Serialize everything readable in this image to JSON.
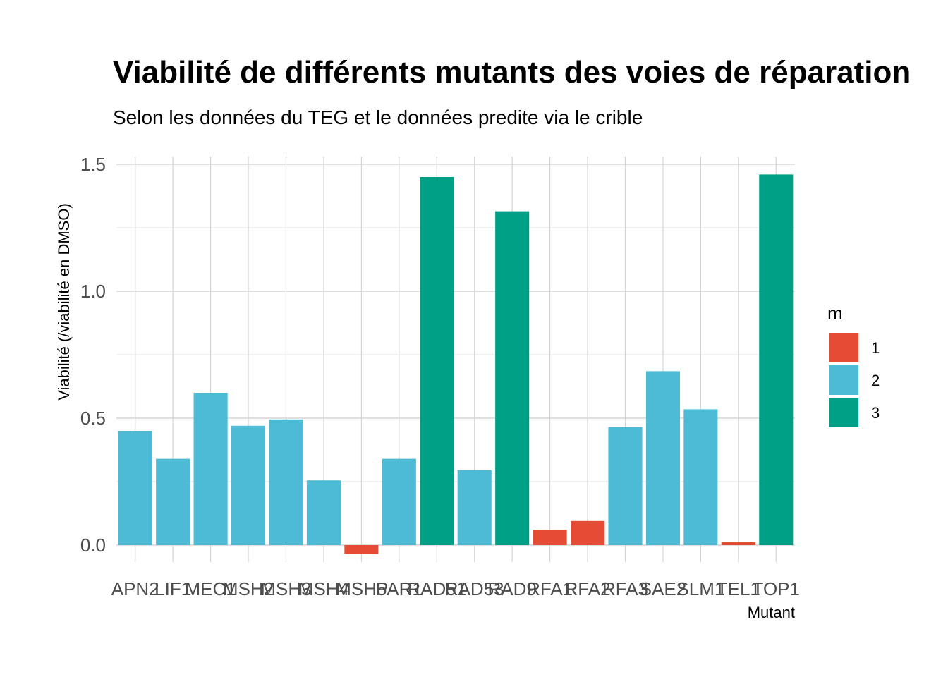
{
  "chart_data": {
    "type": "bar",
    "title": "Viabilité de différents mutants des voies de réparation",
    "subtitle": "Selon les données du TEG et le données predite via le crible",
    "xlabel": "Mutant",
    "ylabel": "Viabilité (/viabilité en DMSO)",
    "categories": [
      "APN2",
      "LIF1",
      "MEC1",
      "MSH2",
      "MSH3",
      "MSH4",
      "MSH5",
      "PAR1",
      "RAD51",
      "RAD53",
      "RAD9",
      "RFA1",
      "RFA2",
      "RFA3",
      "SAE2",
      "SLM1",
      "TEL1",
      "TOP1"
    ],
    "values": [
      0.45,
      0.34,
      0.6,
      0.47,
      0.495,
      0.255,
      -0.035,
      0.34,
      1.45,
      0.295,
      1.315,
      0.06,
      0.095,
      0.465,
      0.685,
      0.535,
      0.012,
      1.46
    ],
    "groups": [
      "2",
      "2",
      "2",
      "2",
      "2",
      "2",
      "1",
      "2",
      "3",
      "2",
      "3",
      "1",
      "1",
      "2",
      "2",
      "2",
      "1",
      "3"
    ],
    "ylim": [
      -0.05,
      1.53
    ],
    "yticks": [
      0.0,
      0.5,
      1.0,
      1.5
    ],
    "ytick_labels": [
      "0.0",
      "0.5",
      "1.0",
      "1.5"
    ],
    "grid": true,
    "legend": {
      "title": "m",
      "position": "right",
      "items": [
        {
          "label": "1",
          "color": "#E64B35"
        },
        {
          "label": "2",
          "color": "#4DBBD5"
        },
        {
          "label": "3",
          "color": "#00A087"
        }
      ]
    }
  }
}
